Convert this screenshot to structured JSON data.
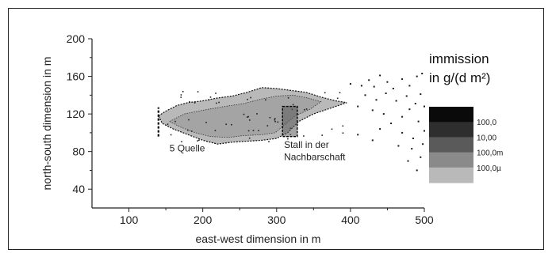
{
  "chart_data": {
    "type": "heatmap",
    "xlabel": "east-west dimension in m",
    "ylabel": "north-south dimension in m",
    "xlim": [
      50,
      500
    ],
    "ylim": [
      20,
      200
    ],
    "x_ticks": [
      100,
      200,
      300,
      400,
      500
    ],
    "y_ticks": [
      40,
      80,
      120,
      160,
      200
    ],
    "x_tick_labels": [
      "100",
      "200",
      "300",
      "400",
      "500"
    ],
    "y_tick_labels": [
      "40",
      "80",
      "120",
      "160",
      "200"
    ],
    "legend": {
      "title_line1": "immission",
      "title_line2": "in g/(d m²)",
      "placement": "right",
      "levels": [
        {
          "label": "",
          "color": "#0a0a0a"
        },
        {
          "label": "100,0",
          "color": "#2e2e2e"
        },
        {
          "label": "10,00",
          "color": "#5a5a5a"
        },
        {
          "label": "100,0m",
          "color": "#8a8a8a"
        },
        {
          "label": "100,0µ",
          "color": "#b9b9b9"
        }
      ]
    },
    "plume_outline": [
      [
        140,
        118
      ],
      [
        150,
        123
      ],
      [
        165,
        129
      ],
      [
        180,
        132
      ],
      [
        200,
        134
      ],
      [
        220,
        137
      ],
      [
        240,
        139
      ],
      [
        260,
        143
      ],
      [
        280,
        148
      ],
      [
        300,
        147
      ],
      [
        320,
        145
      ],
      [
        340,
        143
      ],
      [
        360,
        138
      ],
      [
        380,
        134
      ],
      [
        395,
        132
      ],
      [
        380,
        128
      ],
      [
        350,
        120
      ],
      [
        330,
        112
      ],
      [
        315,
        100
      ],
      [
        300,
        94
      ],
      [
        280,
        92
      ],
      [
        260,
        91
      ],
      [
        240,
        90
      ],
      [
        220,
        88
      ],
      [
        200,
        92
      ],
      [
        180,
        98
      ],
      [
        160,
        104
      ],
      [
        145,
        110
      ]
    ],
    "plume_core_outline": [
      [
        155,
        112
      ],
      [
        175,
        120
      ],
      [
        200,
        124
      ],
      [
        230,
        128
      ],
      [
        255,
        131
      ],
      [
        280,
        136
      ],
      [
        300,
        139
      ],
      [
        322,
        140
      ],
      [
        342,
        137
      ],
      [
        360,
        133
      ],
      [
        345,
        125
      ],
      [
        325,
        118
      ],
      [
        310,
        108
      ],
      [
        298,
        100
      ],
      [
        280,
        98
      ],
      [
        255,
        97
      ],
      [
        235,
        95
      ],
      [
        210,
        96
      ],
      [
        190,
        100
      ],
      [
        170,
        106
      ]
    ],
    "scatter_points": [
      [
        400,
        152
      ],
      [
        415,
        150
      ],
      [
        425,
        156
      ],
      [
        432,
        149
      ],
      [
        440,
        161
      ],
      [
        450,
        154
      ],
      [
        458,
        147
      ],
      [
        470,
        157
      ],
      [
        480,
        150
      ],
      [
        490,
        160
      ],
      [
        497,
        163
      ],
      [
        420,
        140
      ],
      [
        435,
        135
      ],
      [
        448,
        142
      ],
      [
        462,
        134
      ],
      [
        476,
        139
      ],
      [
        488,
        131
      ],
      [
        495,
        141
      ],
      [
        410,
        128
      ],
      [
        430,
        124
      ],
      [
        445,
        120
      ],
      [
        470,
        117
      ],
      [
        480,
        125
      ],
      [
        492,
        112
      ],
      [
        455,
        110
      ],
      [
        440,
        104
      ],
      [
        470,
        100
      ],
      [
        485,
        94
      ],
      [
        498,
        88
      ],
      [
        465,
        86
      ],
      [
        430,
        92
      ],
      [
        410,
        98
      ],
      [
        495,
        74
      ],
      [
        478,
        70
      ],
      [
        490,
        60
      ],
      [
        483,
        83
      ],
      [
        500,
        128
      ],
      [
        500,
        102
      ]
    ],
    "source_line": {
      "x": 140,
      "y_from": 96,
      "y_to": 127
    },
    "stable_box": {
      "x_from": 308,
      "x_to": 328,
      "y_from": 96,
      "y_to": 128
    },
    "annotations": [
      {
        "text": "5 Quelle",
        "x": 155,
        "y": 80
      },
      {
        "text": "Stall in der",
        "x": 310,
        "y": 84
      },
      {
        "text": "Nachbarschaft",
        "x": 310,
        "y": 71
      }
    ]
  }
}
